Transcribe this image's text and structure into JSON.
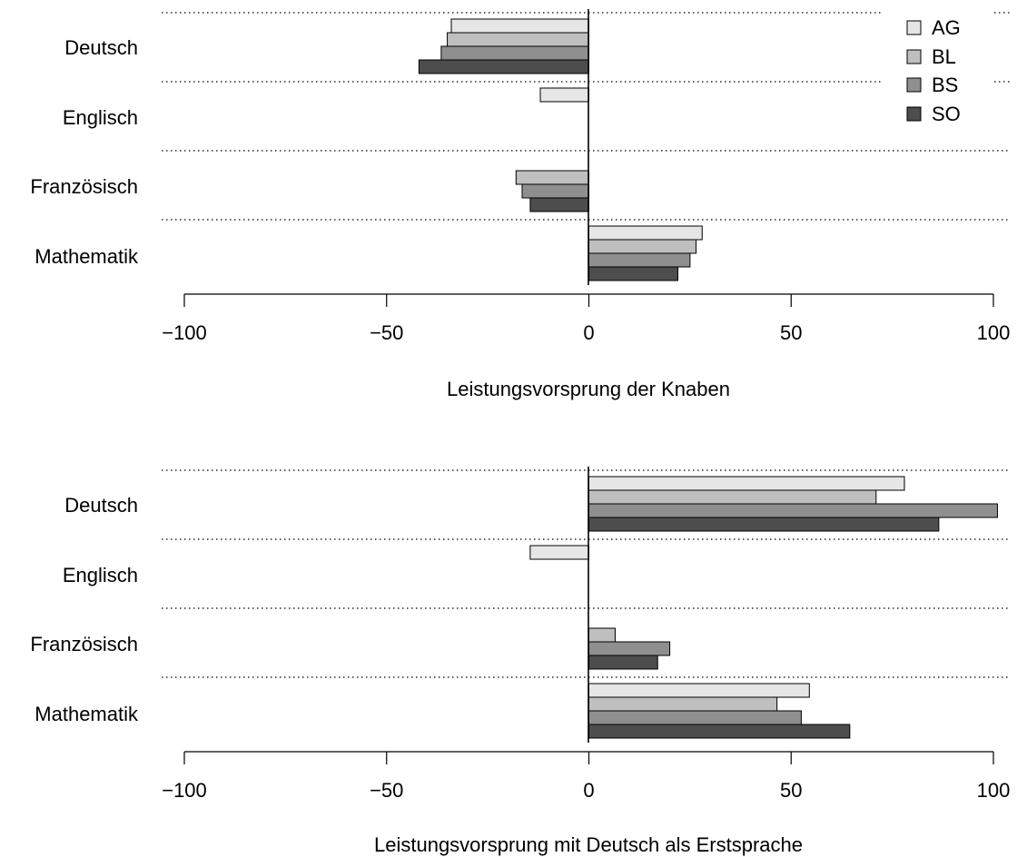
{
  "colors": {
    "AG": "#e6e6e6",
    "BL": "#bfbfbf",
    "BS": "#8f8f8f",
    "SO": "#4d4d4d"
  },
  "legend": {
    "placement": "top-right",
    "entries": [
      "AG",
      "BL",
      "BS",
      "SO"
    ]
  },
  "chart_data": [
    {
      "type": "bar",
      "orientation": "horizontal",
      "categories": [
        "Deutsch",
        "Englisch",
        "Französisch",
        "Mathematik"
      ],
      "series": [
        {
          "name": "AG",
          "values": [
            -34,
            -12,
            null,
            28
          ]
        },
        {
          "name": "BL",
          "values": [
            -35,
            null,
            -18,
            26.5
          ]
        },
        {
          "name": "BS",
          "values": [
            -36.5,
            null,
            -16.5,
            25
          ]
        },
        {
          "name": "SO",
          "values": [
            -42,
            null,
            -14.5,
            22
          ]
        }
      ],
      "title": "",
      "xlabel": "Leistungsvorsprung der Knaben",
      "ylabel": "",
      "xlim": [
        -100,
        100
      ],
      "xticks": [
        -100,
        -50,
        0,
        50,
        100
      ],
      "xtick_labels": [
        "−100",
        "−50",
        "0",
        "50",
        "100"
      ],
      "grid": false
    },
    {
      "type": "bar",
      "orientation": "horizontal",
      "categories": [
        "Deutsch",
        "Englisch",
        "Französisch",
        "Mathematik"
      ],
      "series": [
        {
          "name": "AG",
          "values": [
            78,
            -14.5,
            null,
            54.5
          ]
        },
        {
          "name": "BL",
          "values": [
            71,
            null,
            6.5,
            46.5
          ]
        },
        {
          "name": "BS",
          "values": [
            101,
            null,
            20,
            52.5
          ]
        },
        {
          "name": "SO",
          "values": [
            86.5,
            null,
            17,
            64.5
          ]
        }
      ],
      "title": "",
      "xlabel": "Leistungsvorsprung mit Deutsch als Erstsprache",
      "ylabel": "",
      "xlim": [
        -100,
        100
      ],
      "xticks": [
        -100,
        -50,
        0,
        50,
        100
      ],
      "xtick_labels": [
        "−100",
        "−50",
        "0",
        "50",
        "100"
      ],
      "grid": false
    }
  ]
}
